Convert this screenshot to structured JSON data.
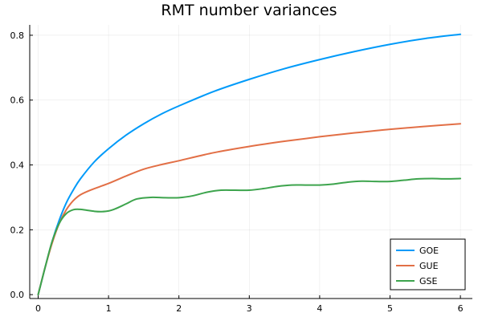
{
  "chart_data": {
    "type": "line",
    "title": "RMT number variances",
    "xlabel": "",
    "ylabel": "",
    "xlim": [
      0,
      6
    ],
    "ylim": [
      0,
      0.8
    ],
    "xticks": [
      "0",
      "1",
      "2",
      "3",
      "4",
      "5",
      "6"
    ],
    "yticks": [
      "0.0",
      "0.2",
      "0.4",
      "0.6",
      "0.8"
    ],
    "grid": true,
    "legend_position": "bottom-right",
    "series": [
      {
        "name": "GOE",
        "color": "#009AF9",
        "x": [
          0,
          0.1,
          0.2,
          0.3,
          0.4,
          0.5,
          0.6,
          0.8,
          1.0,
          1.25,
          1.5,
          1.75,
          2.0,
          2.5,
          3.0,
          3.5,
          4.0,
          4.5,
          5.0,
          5.5,
          6.0
        ],
        "y": [
          0,
          0.085,
          0.165,
          0.23,
          0.283,
          0.323,
          0.357,
          0.41,
          0.45,
          0.492,
          0.527,
          0.557,
          0.582,
          0.627,
          0.664,
          0.697,
          0.725,
          0.75,
          0.772,
          0.79,
          0.803
        ]
      },
      {
        "name": "GUE",
        "color": "#E26F46",
        "x": [
          0,
          0.1,
          0.2,
          0.3,
          0.4,
          0.5,
          0.6,
          0.75,
          1.0,
          1.25,
          1.5,
          1.75,
          2.0,
          2.5,
          3.0,
          3.5,
          4.0,
          4.5,
          5.0,
          5.5,
          6.0
        ],
        "y": [
          0,
          0.085,
          0.16,
          0.22,
          0.262,
          0.29,
          0.308,
          0.323,
          0.343,
          0.366,
          0.387,
          0.401,
          0.413,
          0.438,
          0.457,
          0.473,
          0.487,
          0.499,
          0.51,
          0.519,
          0.527
        ]
      },
      {
        "name": "GSE",
        "color": "#3DA44D",
        "x": [
          0,
          0.1,
          0.2,
          0.3,
          0.4,
          0.5,
          0.6,
          0.7,
          0.8,
          0.9,
          1.0,
          1.1,
          1.25,
          1.4,
          1.6,
          1.8,
          2.0,
          2.2,
          2.4,
          2.6,
          2.8,
          3.0,
          3.2,
          3.4,
          3.6,
          3.8,
          4.0,
          4.2,
          4.4,
          4.6,
          4.8,
          5.0,
          5.2,
          5.4,
          5.6,
          5.8,
          6.0
        ],
        "y": [
          0,
          0.085,
          0.165,
          0.22,
          0.25,
          0.262,
          0.263,
          0.26,
          0.257,
          0.256,
          0.258,
          0.265,
          0.28,
          0.295,
          0.3,
          0.299,
          0.299,
          0.305,
          0.316,
          0.322,
          0.322,
          0.322,
          0.327,
          0.334,
          0.338,
          0.338,
          0.338,
          0.341,
          0.347,
          0.35,
          0.349,
          0.349,
          0.353,
          0.357,
          0.358,
          0.357,
          0.358
        ]
      }
    ]
  }
}
